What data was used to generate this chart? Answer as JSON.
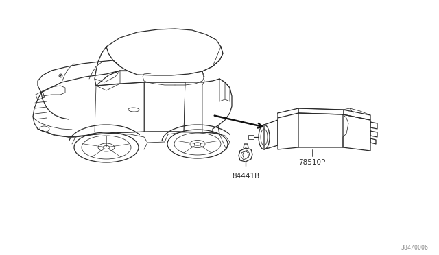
{
  "background_color": "#ffffff",
  "line_color": "#2a2a2a",
  "part_label_1": "84441B",
  "part_label_2": "78510P",
  "diagram_code": "J84/0006",
  "fig_width": 6.4,
  "fig_height": 3.72,
  "dpi": 100,
  "lw_main": 0.9,
  "lw_thin": 0.55,
  "font_size": 7.5
}
